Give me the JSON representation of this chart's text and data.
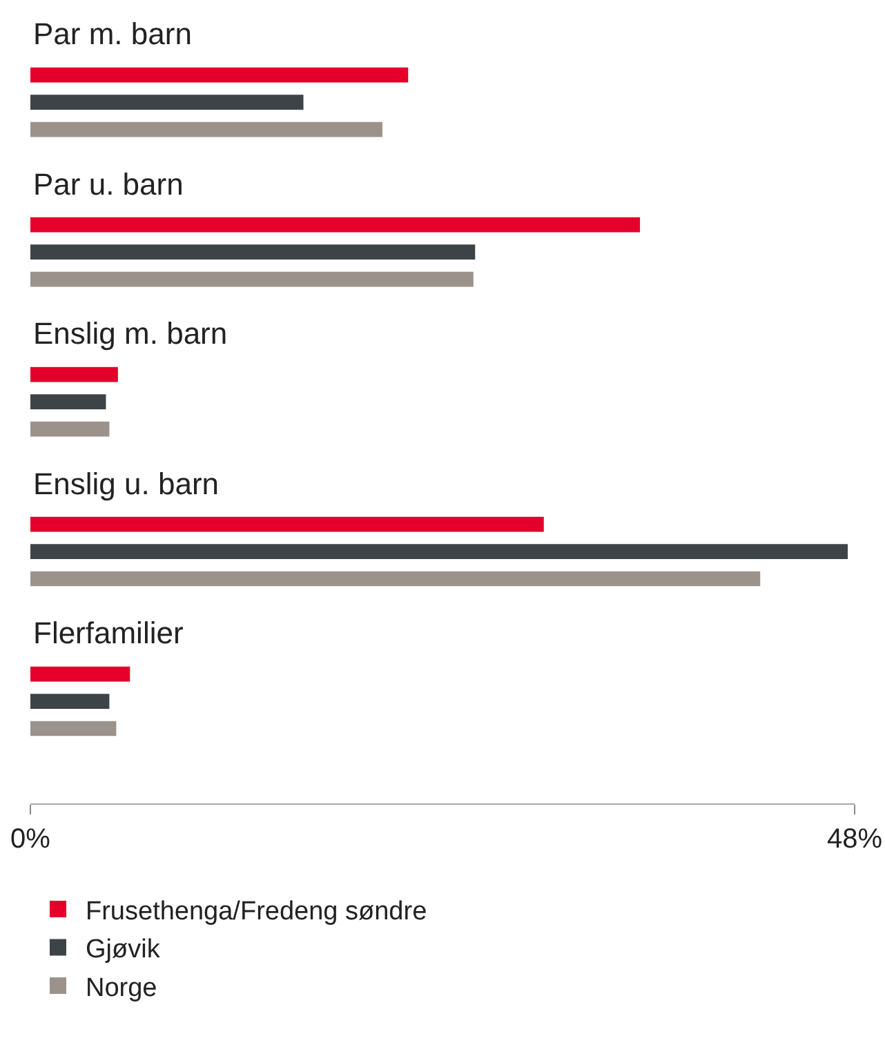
{
  "chart_data": {
    "type": "bar",
    "orientation": "horizontal",
    "categories": [
      "Par m. barn",
      "Par u. barn",
      "Enslig m. barn",
      "Enslig u. barn",
      "Flerfamilier"
    ],
    "series": [
      {
        "name": "Frusethenga/Fredeng søndre",
        "color": "#e4002b",
        "values": [
          22,
          35.5,
          5.1,
          29.9,
          5.8
        ]
      },
      {
        "name": "Gjøvik",
        "color": "#3d4448",
        "values": [
          15.9,
          25.9,
          4.4,
          47.6,
          4.6
        ]
      },
      {
        "name": "Norge",
        "color": "#9b928c",
        "values": [
          20.5,
          25.8,
          4.6,
          42.5,
          5
        ]
      }
    ],
    "xlim": [
      0,
      48
    ],
    "xticks": [
      {
        "value": 0,
        "label": "0%"
      },
      {
        "value": 48,
        "label": "48%"
      }
    ],
    "legend": "bottom"
  }
}
